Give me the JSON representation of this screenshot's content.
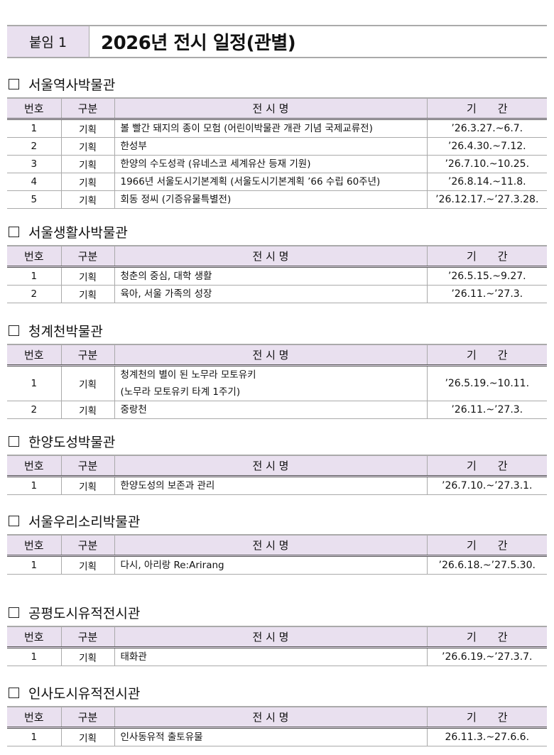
{
  "title_bar": {
    "label": "붙임 1",
    "title": "2026년 전시 일정(관별)"
  },
  "columns": [
    "번호",
    "구분",
    "전 시 명",
    "기　　간"
  ],
  "sections": [
    {
      "museum": "서울역사박물관",
      "rows": [
        {
          "no": "1",
          "type": "기획",
          "name": [
            "볼 빨간 돼지의 종이 모험 (어린이박물관 개관 기념 국제교류전)"
          ],
          "period": "’26.3.27.~6.7."
        },
        {
          "no": "2",
          "type": "기획",
          "name": [
            "한성부"
          ],
          "period": "’26.4.30.~7.12."
        },
        {
          "no": "3",
          "type": "기획",
          "name": [
            "한양의 수도성곽 (유네스코 세계유산 등재 기원)"
          ],
          "period": "’26.7.10.~10.25."
        },
        {
          "no": "4",
          "type": "기획",
          "name": [
            "1966년 서울도시기본계획 (서울도시기본계획 ’66 수립 60주년)"
          ],
          "period": "’26.8.14.~11.8."
        },
        {
          "no": "5",
          "type": "기획",
          "name": [
            "회동 정씨 (기증유물특별전)"
          ],
          "period": "’26.12.17.~’27.3.28."
        }
      ]
    },
    {
      "museum": "서울생활사박물관",
      "rows": [
        {
          "no": "1",
          "type": "기획",
          "name": [
            "청춘의 중심, 대학 생활"
          ],
          "period": "’26.5.15.~9.27."
        },
        {
          "no": "2",
          "type": "기획",
          "name": [
            "육아, 서울 가족의 성장"
          ],
          "period": "’26.11.~’27.3."
        }
      ]
    },
    {
      "museum": "청계천박물관",
      "rows": [
        {
          "no": "1",
          "type": "기획",
          "name": [
            "청계천의 별이 된 노무라 모토유키",
            "(노무라 모토유키 타계 1주기)"
          ],
          "period": "’26.5.19.~10.11."
        },
        {
          "no": "2",
          "type": "기획",
          "name": [
            "중랑천"
          ],
          "period": "’26.11.~’27.3."
        }
      ]
    },
    {
      "museum": "한양도성박물관",
      "rows": [
        {
          "no": "1",
          "type": "기획",
          "name": [
            "한양도성의 보존과 관리"
          ],
          "period": "’26.7.10.~’27.3.1."
        }
      ]
    },
    {
      "museum": "서울우리소리박물관",
      "rows": [
        {
          "no": "1",
          "type": "기획",
          "name": [
            "다시, 아리랑 Re:Arirang"
          ],
          "period": "’26.6.18.~’27.5.30."
        }
      ]
    },
    {
      "museum": "공평도시유적전시관",
      "rows": [
        {
          "no": "1",
          "type": "기획",
          "name": [
            "태화관"
          ],
          "period": "’26.6.19.~’27.3.7."
        }
      ]
    },
    {
      "museum": "인사도시유적전시관",
      "rows": [
        {
          "no": "1",
          "type": "기획",
          "name": [
            "인사동유적 출토유물"
          ],
          "period": "26.11.3.~27.6.6."
        }
      ]
    }
  ]
}
